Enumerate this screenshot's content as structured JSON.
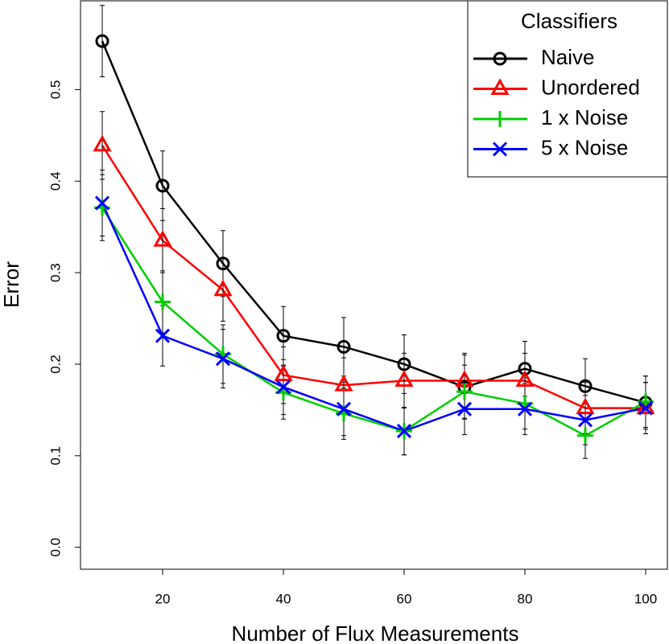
{
  "chart_data": {
    "type": "line",
    "xlabel": "Number of Flux Measurements",
    "ylabel": "Error",
    "x": [
      10,
      20,
      30,
      40,
      50,
      60,
      70,
      80,
      90,
      100
    ],
    "xlim": [
      6.4,
      103.6
    ],
    "ylim": [
      -0.024,
      0.597
    ],
    "xticks": [
      20,
      40,
      60,
      80,
      100
    ],
    "yticks": [
      {
        "value": 0,
        "label": "0.0"
      },
      0.1,
      0.2,
      0.3,
      0.4,
      0.5
    ],
    "legend_title": "Classifiers",
    "legend_position": "topright",
    "series": [
      {
        "name": "Naive",
        "color": "#000000",
        "marker": "circle",
        "values": [
          0.553,
          0.395,
          0.31,
          0.231,
          0.219,
          0.2,
          0.175,
          0.195,
          0.176,
          0.158
        ],
        "errors": [
          0.039,
          0.038,
          0.036,
          0.032,
          0.032,
          0.032,
          0.035,
          0.03,
          0.03,
          0.029
        ]
      },
      {
        "name": "Unordered",
        "color": "#ff0000",
        "marker": "triangle",
        "values": [
          0.439,
          0.335,
          0.281,
          0.188,
          0.177,
          0.182,
          0.182,
          0.182,
          0.152,
          0.152
        ],
        "errors": [
          0.037,
          0.035,
          0.034,
          0.031,
          0.03,
          0.03,
          0.03,
          0.03,
          0.028,
          0.028
        ]
      },
      {
        "name": "1 x Noise",
        "color": "#00cd00",
        "marker": "plus",
        "values": [
          0.371,
          0.268,
          0.211,
          0.169,
          0.146,
          0.127,
          0.17,
          0.157,
          0.122,
          0.159
        ],
        "errors": [
          0.036,
          0.034,
          0.032,
          0.029,
          0.028,
          0.026,
          0.029,
          0.028,
          0.025,
          0.028
        ]
      },
      {
        "name": "5 x Noise",
        "color": "#0000ff",
        "marker": "cross",
        "values": [
          0.376,
          0.231,
          0.206,
          0.175,
          0.151,
          0.127,
          0.151,
          0.151,
          0.139,
          0.152
        ],
        "errors": [
          0.036,
          0.033,
          0.032,
          0.03,
          0.029,
          0.026,
          0.028,
          0.028,
          0.027,
          0.028
        ]
      }
    ]
  }
}
